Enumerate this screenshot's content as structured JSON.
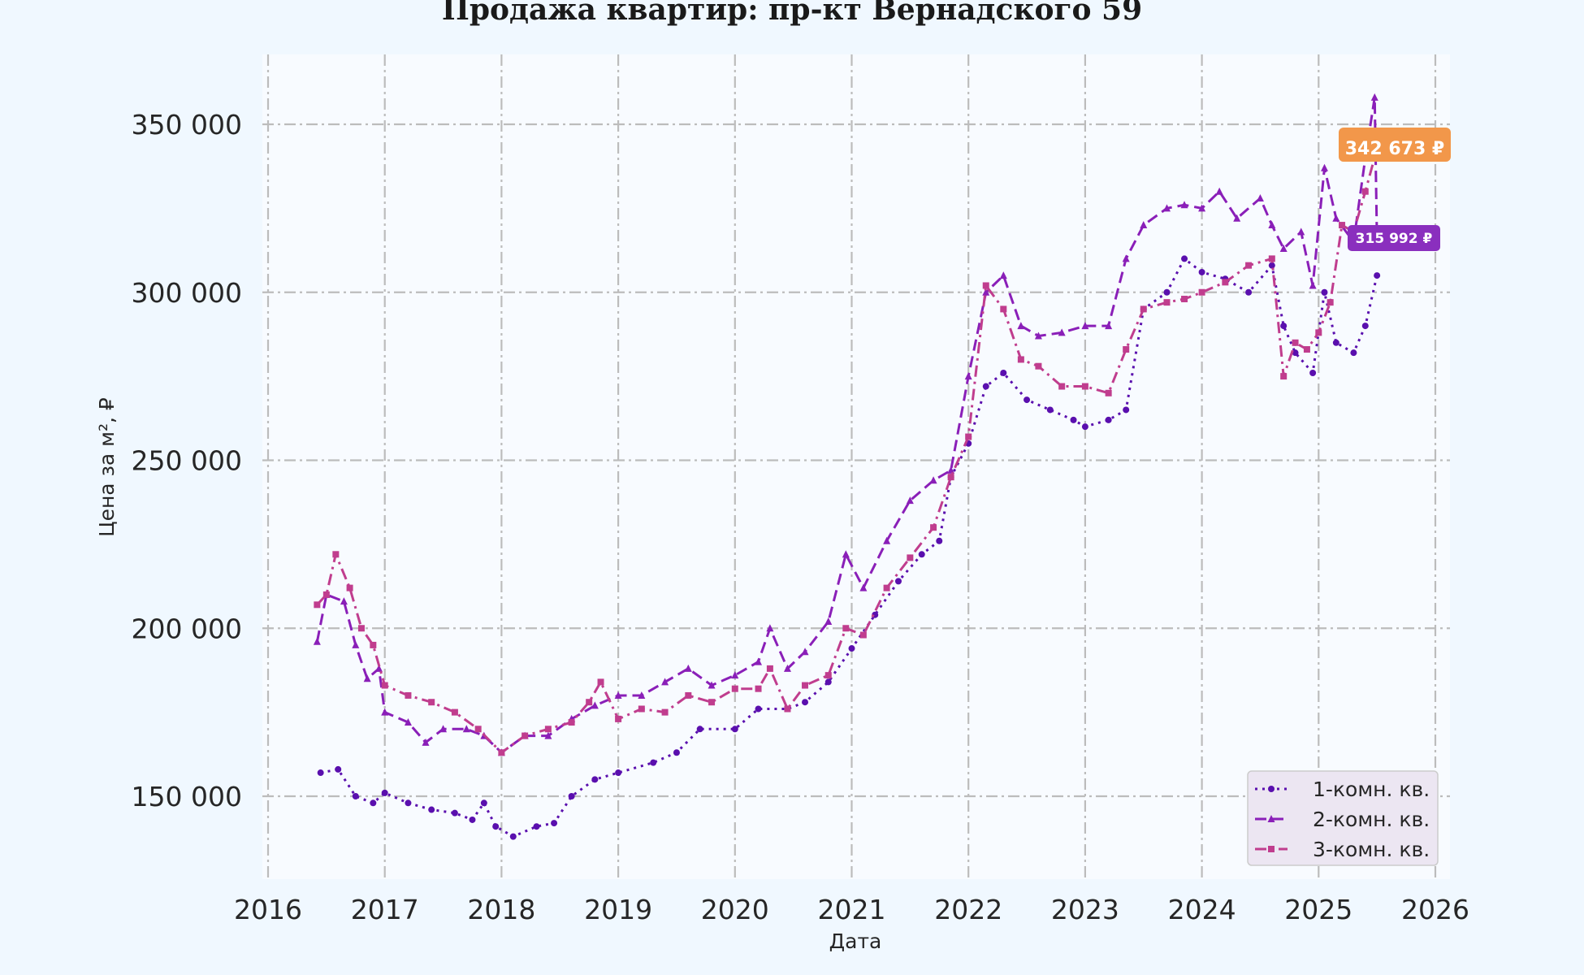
{
  "chart_data": {
    "type": "line",
    "title": "Продажа квартир: пр-кт Вернадского 59",
    "xlabel": "Дата",
    "ylabel": "Цена за м², ₽",
    "xlim": [
      2016,
      2026
    ],
    "ylim": [
      125000,
      370000
    ],
    "x_ticks": [
      2016,
      2017,
      2018,
      2019,
      2020,
      2021,
      2022,
      2023,
      2024,
      2025,
      2026
    ],
    "y_ticks": [
      150000,
      200000,
      250000,
      300000,
      350000
    ],
    "y_tick_labels": [
      "150 000",
      "200 000",
      "250 000",
      "300 000",
      "350 000"
    ],
    "grid": true,
    "legend_position": "lower-right",
    "series": [
      {
        "name": "1-комн. кв.",
        "color": "#5a0fae",
        "style": "dotted",
        "marker": "circle",
        "x": [
          2016.45,
          2016.6,
          2016.75,
          2016.9,
          2017.0,
          2017.2,
          2017.4,
          2017.6,
          2017.75,
          2017.85,
          2017.95,
          2018.1,
          2018.3,
          2018.45,
          2018.6,
          2018.8,
          2019.0,
          2019.3,
          2019.5,
          2019.7,
          2020.0,
          2020.2,
          2020.45,
          2020.6,
          2020.8,
          2021.0,
          2021.2,
          2021.4,
          2021.6,
          2021.75,
          2021.85,
          2022.0,
          2022.15,
          2022.3,
          2022.5,
          2022.7,
          2022.9,
          2023.0,
          2023.2,
          2023.35,
          2023.5,
          2023.7,
          2023.85,
          2024.0,
          2024.2,
          2024.4,
          2024.6,
          2024.7,
          2024.8,
          2024.95,
          2025.05,
          2025.15,
          2025.3,
          2025.4,
          2025.5
        ],
        "y": [
          157000,
          158000,
          150000,
          148000,
          151000,
          148000,
          146000,
          145000,
          143000,
          148000,
          141000,
          138000,
          141000,
          142000,
          150000,
          155000,
          157000,
          160000,
          163000,
          170000,
          170000,
          176000,
          176000,
          178000,
          184000,
          194000,
          204000,
          214000,
          222000,
          226000,
          245000,
          255000,
          272000,
          276000,
          268000,
          265000,
          262000,
          260000,
          262000,
          265000,
          295000,
          300000,
          310000,
          306000,
          304000,
          300000,
          308000,
          290000,
          282000,
          276000,
          300000,
          285000,
          282000,
          290000,
          305000
        ]
      },
      {
        "name": "2-комн. кв.",
        "color": "#8a1fb8",
        "style": "dashed",
        "marker": "triangle",
        "x": [
          2016.42,
          2016.5,
          2016.65,
          2016.75,
          2016.85,
          2016.95,
          2017.0,
          2017.2,
          2017.35,
          2017.5,
          2017.7,
          2017.85,
          2018.0,
          2018.2,
          2018.4,
          2018.6,
          2018.8,
          2019.0,
          2019.2,
          2019.4,
          2019.6,
          2019.8,
          2020.0,
          2020.2,
          2020.3,
          2020.45,
          2020.6,
          2020.8,
          2020.95,
          2021.1,
          2021.3,
          2021.5,
          2021.7,
          2021.85,
          2022.0,
          2022.15,
          2022.3,
          2022.45,
          2022.6,
          2022.8,
          2023.0,
          2023.2,
          2023.35,
          2023.5,
          2023.7,
          2023.85,
          2024.0,
          2024.15,
          2024.3,
          2024.5,
          2024.6,
          2024.7,
          2024.85,
          2024.95,
          2025.05,
          2025.15,
          2025.3,
          2025.4,
          2025.48,
          2025.5
        ],
        "y": [
          196000,
          210000,
          208000,
          195000,
          185000,
          188000,
          175000,
          172000,
          166000,
          170000,
          170000,
          168000,
          163000,
          168000,
          168000,
          173000,
          177000,
          180000,
          180000,
          184000,
          188000,
          183000,
          186000,
          190000,
          200000,
          188000,
          193000,
          202000,
          222000,
          212000,
          226000,
          238000,
          244000,
          247000,
          275000,
          300000,
          305000,
          290000,
          287000,
          288000,
          290000,
          290000,
          310000,
          320000,
          325000,
          326000,
          325000,
          330000,
          322000,
          328000,
          320000,
          313000,
          318000,
          302000,
          337000,
          322000,
          315000,
          340000,
          358000,
          315992
        ]
      },
      {
        "name": "3-комн. кв.",
        "color": "#c03d8e",
        "style": "dashdot",
        "marker": "square",
        "x": [
          2016.42,
          2016.5,
          2016.58,
          2016.7,
          2016.8,
          2016.9,
          2017.0,
          2017.2,
          2017.4,
          2017.6,
          2017.8,
          2018.0,
          2018.2,
          2018.4,
          2018.6,
          2018.75,
          2018.85,
          2019.0,
          2019.2,
          2019.4,
          2019.6,
          2019.8,
          2020.0,
          2020.2,
          2020.3,
          2020.45,
          2020.6,
          2020.8,
          2020.95,
          2021.1,
          2021.3,
          2021.5,
          2021.7,
          2021.85,
          2022.0,
          2022.15,
          2022.3,
          2022.45,
          2022.6,
          2022.8,
          2023.0,
          2023.2,
          2023.35,
          2023.5,
          2023.7,
          2023.85,
          2024.0,
          2024.2,
          2024.4,
          2024.6,
          2024.7,
          2024.8,
          2024.9,
          2025.0,
          2025.1,
          2025.2,
          2025.3,
          2025.4,
          2025.5
        ],
        "y": [
          207000,
          210000,
          222000,
          212000,
          200000,
          195000,
          183000,
          180000,
          178000,
          175000,
          170000,
          163000,
          168000,
          170000,
          172000,
          178000,
          184000,
          173000,
          176000,
          175000,
          180000,
          178000,
          182000,
          182000,
          188000,
          176000,
          183000,
          186000,
          200000,
          198000,
          212000,
          221000,
          230000,
          245000,
          257000,
          302000,
          295000,
          280000,
          278000,
          272000,
          272000,
          270000,
          283000,
          295000,
          297000,
          298000,
          300000,
          303000,
          308000,
          310000,
          275000,
          285000,
          283000,
          288000,
          297000,
          320000,
          318000,
          330000,
          342673
        ]
      }
    ],
    "end_labels": [
      {
        "series": "3-комн. кв.",
        "text": "342 673 ₽",
        "value": 342673,
        "color": "#f2974a"
      },
      {
        "series": "2-комн. кв.",
        "text": "315 992 ₽",
        "value": 315992,
        "color": "#8a2fbe"
      }
    ]
  }
}
